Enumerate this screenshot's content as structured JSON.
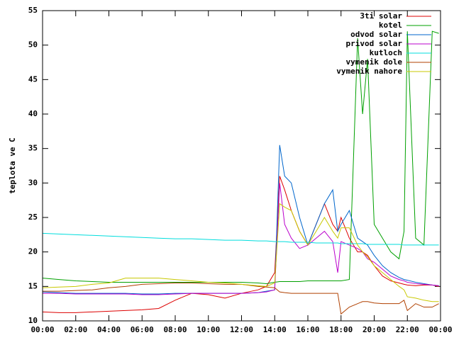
{
  "chart_data": {
    "type": "line",
    "y_label": "teplota ve C",
    "x": [
      0,
      1,
      2,
      3,
      4,
      5,
      6,
      7,
      8,
      9,
      10,
      11,
      12,
      13,
      13.5,
      14,
      14.3,
      14.6,
      15,
      15.5,
      16,
      16.5,
      17,
      17.5,
      17.8,
      18,
      18.5,
      19,
      19.3,
      19.6,
      20,
      20.5,
      21,
      21.5,
      21.8,
      22,
      22.5,
      23,
      23.5,
      23.9
    ],
    "xlim": [
      0,
      24
    ],
    "xticks": [
      {
        "value": 0,
        "label": "00:00"
      },
      {
        "value": 2,
        "label": "02:00"
      },
      {
        "value": 4,
        "label": "04:00"
      },
      {
        "value": 6,
        "label": "06:00"
      },
      {
        "value": 8,
        "label": "08:00"
      },
      {
        "value": 10,
        "label": "10:00"
      },
      {
        "value": 12,
        "label": "12:00"
      },
      {
        "value": 14,
        "label": "14:00"
      },
      {
        "value": 16,
        "label": "16:00"
      },
      {
        "value": 18,
        "label": "18:00"
      },
      {
        "value": 20,
        "label": "20:00"
      },
      {
        "value": 22,
        "label": "22:00"
      },
      {
        "value": 24,
        "label": "00:00"
      }
    ],
    "ylim": [
      10,
      55
    ],
    "yticks": [
      10,
      15,
      20,
      25,
      30,
      35,
      40,
      45,
      50,
      55
    ],
    "grid": false,
    "legend": "top-right",
    "series": [
      {
        "name": "3ti solar",
        "color": "#dd0000",
        "values": [
          11.3,
          11.2,
          11.2,
          11.3,
          11.4,
          11.5,
          11.6,
          11.8,
          13,
          14,
          13.8,
          13.3,
          14,
          14.5,
          15,
          17,
          31,
          29,
          26,
          23,
          21,
          24,
          27,
          24,
          23,
          25,
          22,
          20,
          20,
          19.5,
          18,
          16.5,
          15.8,
          15.5,
          15.3,
          15.2,
          15.1,
          15.2,
          15.2,
          15
        ]
      },
      {
        "name": "kotel",
        "color": "#00a000",
        "values": [
          16.2,
          16,
          15.8,
          15.7,
          15.6,
          15.6,
          15.6,
          15.6,
          15.6,
          15.6,
          15.6,
          15.6,
          15.6,
          15.5,
          15.4,
          15.6,
          15.7,
          15.7,
          15.7,
          15.7,
          15.8,
          15.8,
          15.8,
          15.8,
          15.8,
          15.8,
          16,
          51,
          40,
          48,
          24,
          22,
          20,
          19,
          23,
          52,
          22,
          21,
          52,
          51.7
        ]
      },
      {
        "name": "odvod solar",
        "color": "#0066cc",
        "values": [
          14.2,
          14.1,
          14,
          14,
          14,
          14,
          13.9,
          13.9,
          14,
          14,
          14,
          14,
          14,
          14.1,
          14.3,
          14.5,
          35.5,
          31,
          30,
          25,
          21,
          24,
          27,
          29,
          23,
          24,
          26,
          22,
          21.5,
          21,
          19.5,
          18,
          17,
          16.3,
          16,
          15.9,
          15.6,
          15.4,
          15.2,
          15.1
        ]
      },
      {
        "name": "privod solar",
        "color": "#bb00cc",
        "values": [
          14,
          14,
          13.9,
          13.9,
          13.9,
          13.9,
          13.8,
          13.8,
          13.9,
          14,
          14,
          14,
          14,
          14.1,
          14.2,
          14.5,
          30,
          24,
          22,
          20.5,
          21,
          22,
          23,
          21.5,
          17,
          21.5,
          21,
          20.5,
          20,
          19,
          18.5,
          17.5,
          16.5,
          16,
          15.8,
          15.6,
          15.4,
          15.3,
          15.2,
          15.1
        ]
      },
      {
        "name": "kutloch",
        "color": "#00dddd",
        "values": [
          22.7,
          22.6,
          22.5,
          22.4,
          22.3,
          22.2,
          22.1,
          22,
          21.9,
          21.9,
          21.8,
          21.7,
          21.7,
          21.6,
          21.6,
          21.5,
          21.5,
          21.5,
          21.4,
          21.4,
          21.4,
          21.3,
          21.3,
          21.3,
          21.3,
          21.2,
          21.2,
          21.2,
          21.2,
          21.1,
          21.1,
          21.1,
          21.1,
          21.1,
          21,
          21,
          21,
          21,
          21,
          21
        ]
      },
      {
        "name": "vymenik dole",
        "color": "#b04000",
        "values": [
          14.3,
          14.3,
          14.4,
          14.5,
          14.8,
          15,
          15.3,
          15.4,
          15.5,
          15.5,
          15.4,
          15.3,
          15.3,
          15,
          14.9,
          14.8,
          14.2,
          14.1,
          14,
          14,
          14,
          14,
          14,
          14,
          14,
          11,
          12,
          12.5,
          12.8,
          12.8,
          12.6,
          12.5,
          12.5,
          12.5,
          13,
          11.5,
          12.5,
          12,
          12,
          12.5
        ]
      },
      {
        "name": "vymenik nahore",
        "color": "#c8c800",
        "values": [
          14.8,
          14.9,
          15,
          15.3,
          15.5,
          16.2,
          16.2,
          16.2,
          16,
          15.8,
          15.6,
          15.5,
          15.3,
          15.1,
          15,
          15.5,
          27,
          26.5,
          26,
          23,
          21,
          23,
          25,
          23,
          22,
          23.5,
          23.5,
          21,
          20,
          19.3,
          18,
          17,
          16,
          15,
          14.5,
          13.5,
          13.3,
          13,
          12.8,
          12.8
        ]
      }
    ]
  }
}
